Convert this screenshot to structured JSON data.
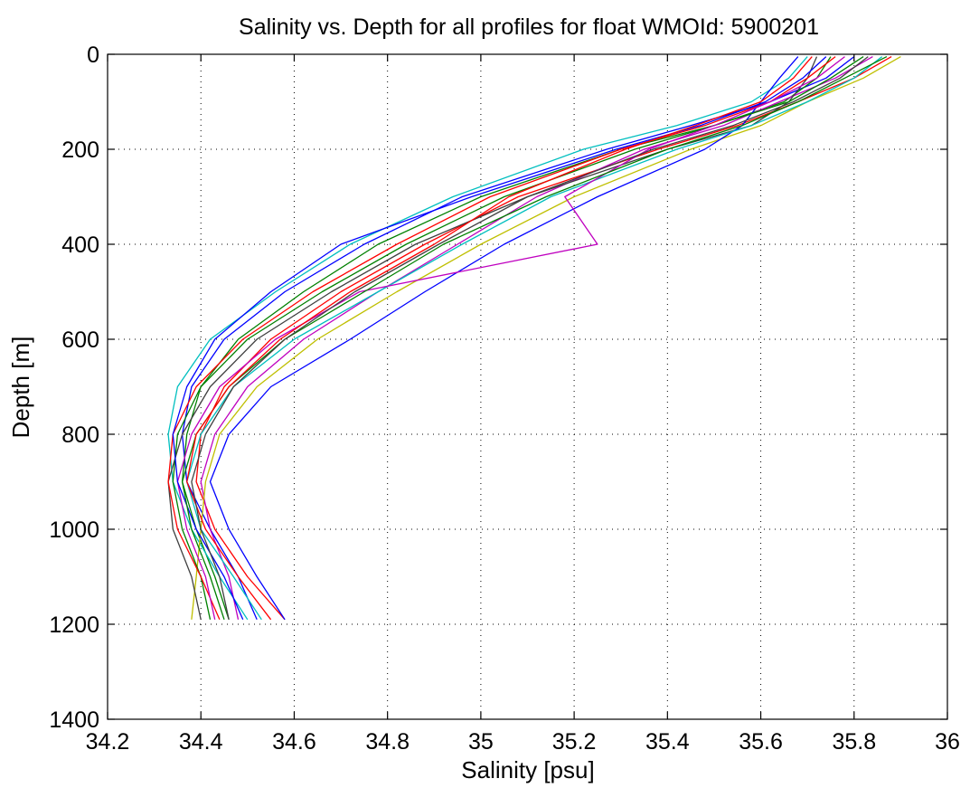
{
  "chart_data": {
    "type": "line",
    "title": "Salinity vs. Depth for all profiles for float WMOId: 5900201",
    "xlabel": "Salinity [psu]",
    "ylabel": "Depth [m]",
    "xlim": [
      34.2,
      36
    ],
    "ylim": [
      0,
      1400
    ],
    "y_reversed": true,
    "grid": true,
    "x_ticks": [
      "34.2",
      "34.4",
      "34.6",
      "34.8",
      "35",
      "35.2",
      "35.4",
      "35.6",
      "35.8",
      "36"
    ],
    "y_ticks": [
      "0",
      "200",
      "400",
      "600",
      "800",
      "1000",
      "1200",
      "1400"
    ],
    "depths": [
      5,
      50,
      100,
      150,
      200,
      300,
      400,
      500,
      600,
      700,
      800,
      900,
      1000,
      1100,
      1190
    ],
    "series": [
      {
        "color": "#0000ff",
        "values": [
          35.8,
          35.74,
          35.62,
          35.45,
          35.27,
          34.96,
          34.75,
          34.58,
          34.45,
          34.38,
          34.36,
          34.37,
          34.42,
          34.48,
          34.52
        ]
      },
      {
        "color": "#008000",
        "values": [
          35.75,
          35.72,
          35.65,
          35.5,
          35.3,
          35.0,
          34.78,
          34.62,
          34.48,
          34.4,
          34.37,
          34.36,
          34.39,
          34.43,
          34.46
        ]
      },
      {
        "color": "#ff0000",
        "values": [
          35.88,
          35.8,
          35.68,
          35.55,
          35.38,
          35.08,
          34.88,
          34.7,
          34.55,
          34.45,
          34.4,
          34.39,
          34.43,
          34.5,
          34.58
        ]
      },
      {
        "color": "#00bfbf",
        "values": [
          35.7,
          35.66,
          35.58,
          35.42,
          35.22,
          34.94,
          34.72,
          34.56,
          34.42,
          34.35,
          34.33,
          34.34,
          34.38,
          34.44,
          34.5
        ]
      },
      {
        "color": "#bf00bf",
        "values": [
          35.84,
          35.76,
          35.64,
          35.52,
          35.35,
          35.12,
          34.95,
          34.78,
          34.62,
          34.5,
          34.43,
          34.4,
          34.42,
          34.46,
          34.48
        ]
      },
      {
        "color": "#bfbf00",
        "values": [
          35.9,
          35.82,
          35.7,
          35.6,
          35.45,
          35.2,
          35.0,
          34.82,
          34.65,
          34.52,
          34.44,
          34.41,
          34.4,
          34.39,
          34.38
        ]
      },
      {
        "color": "#404040",
        "values": [
          35.72,
          35.7,
          35.66,
          35.58,
          35.4,
          35.1,
          34.86,
          34.68,
          34.52,
          34.42,
          34.36,
          34.33,
          34.34,
          34.38,
          34.4
        ]
      },
      {
        "color": "#0000ff",
        "values": [
          35.68,
          35.64,
          35.6,
          35.56,
          35.48,
          35.25,
          35.05,
          34.88,
          34.72,
          34.55,
          34.46,
          34.42,
          34.46,
          34.52,
          34.58
        ]
      },
      {
        "color": "#008000",
        "values": [
          35.82,
          35.75,
          35.66,
          35.5,
          35.33,
          35.05,
          34.84,
          34.66,
          34.5,
          34.4,
          34.35,
          34.34,
          34.36,
          34.4,
          34.42
        ]
      },
      {
        "color": "#ff0000",
        "values": [
          35.76,
          35.7,
          35.62,
          35.48,
          35.3,
          35.02,
          34.82,
          34.64,
          34.49,
          34.39,
          34.34,
          34.33,
          34.35,
          34.4,
          34.44
        ]
      },
      {
        "color": "#00bfbf",
        "values": [
          35.86,
          35.8,
          35.7,
          35.58,
          35.42,
          35.15,
          34.96,
          34.78,
          34.6,
          34.47,
          34.4,
          34.37,
          34.4,
          34.47,
          34.53
        ]
      },
      {
        "color": "#bf00bf",
        "values": [
          35.78,
          35.72,
          35.62,
          35.5,
          35.36,
          35.18,
          35.25,
          34.74,
          34.56,
          34.44,
          34.38,
          34.35,
          34.37,
          34.41,
          34.43
        ]
      },
      {
        "color": "#0000ff",
        "values": [
          35.74,
          35.69,
          35.61,
          35.47,
          35.29,
          34.98,
          34.7,
          34.55,
          34.43,
          34.37,
          34.34,
          34.35,
          34.39,
          34.45,
          34.49
        ]
      },
      {
        "color": "#008000",
        "values": [
          35.87,
          35.78,
          35.68,
          35.56,
          35.4,
          35.14,
          34.92,
          34.75,
          34.58,
          34.46,
          34.39,
          34.36,
          34.38,
          34.42,
          34.45
        ]
      },
      {
        "color": "#ff0000",
        "values": [
          35.71,
          35.67,
          35.6,
          35.46,
          35.31,
          35.06,
          34.9,
          34.72,
          34.57,
          34.46,
          34.39,
          34.37,
          34.41,
          34.48,
          34.55
        ]
      },
      {
        "color": "#404040",
        "values": [
          35.83,
          35.77,
          35.67,
          35.54,
          35.37,
          35.1,
          34.91,
          34.73,
          34.58,
          34.47,
          34.41,
          34.38,
          34.4,
          34.44,
          34.46
        ]
      }
    ]
  }
}
